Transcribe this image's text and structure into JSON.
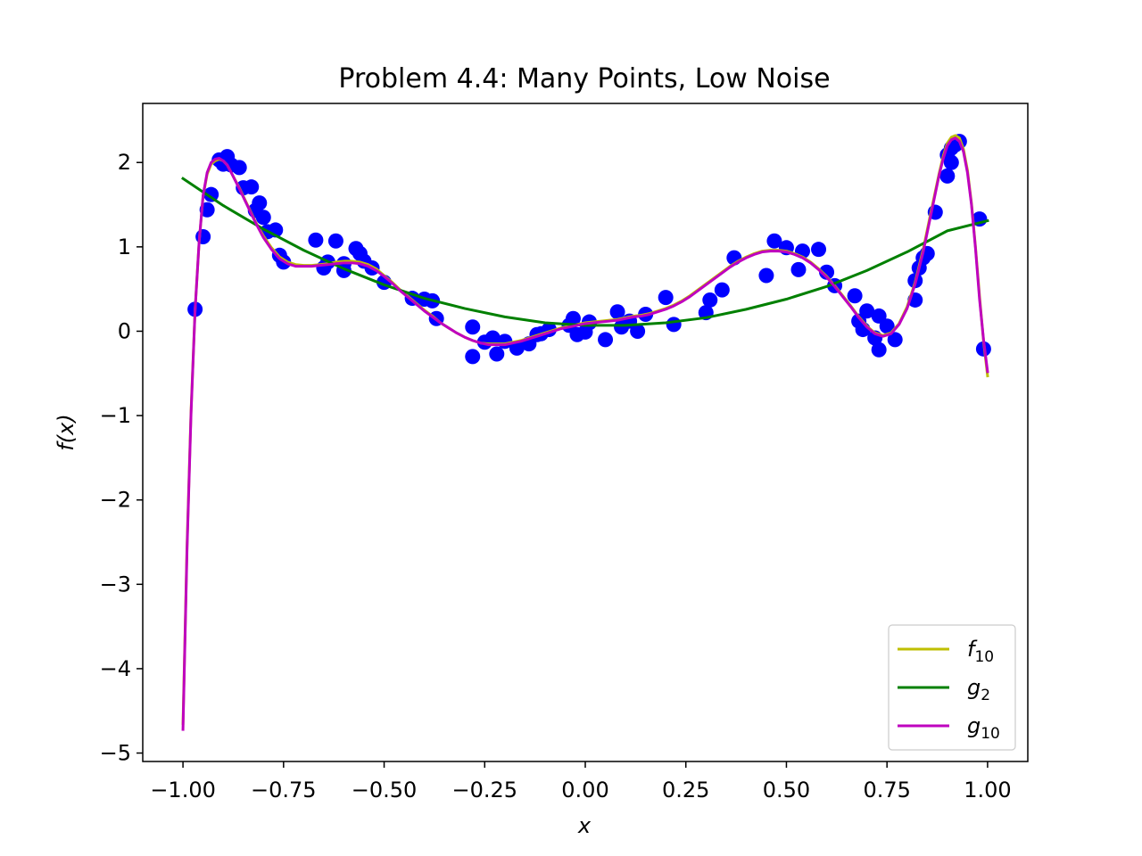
{
  "chart_data": {
    "type": "line",
    "title": "Problem 4.4: Many Points, Low Noise",
    "xlabel": "x",
    "ylabel": "f(x)",
    "xlim": [
      -1.1,
      1.1
    ],
    "ylim": [
      -5.1,
      2.7
    ],
    "grid": false,
    "legend_position": "bottom-right",
    "x_ticks": [
      -1.0,
      -0.75,
      -0.5,
      -0.25,
      0.0,
      0.25,
      0.5,
      0.75,
      1.0
    ],
    "x_tick_labels": [
      "−1.00",
      "−0.75",
      "−0.50",
      "−0.25",
      "0.00",
      "0.25",
      "0.50",
      "0.75",
      "1.00"
    ],
    "y_ticks": [
      -5,
      -4,
      -3,
      -2,
      -1,
      0,
      1,
      2
    ],
    "y_tick_labels": [
      "−5",
      "−4",
      "−3",
      "−2",
      "−1",
      "0",
      "1",
      "2"
    ],
    "legend": [
      {
        "base": "f",
        "sub": "10",
        "color": "#bfbf00"
      },
      {
        "base": "g",
        "sub": "2",
        "color": "#008000"
      },
      {
        "base": "g",
        "sub": "10",
        "color": "#bf00bf"
      }
    ],
    "colors": {
      "points": "#0000ff",
      "f10": "#bfbf00",
      "g2": "#008000",
      "g10": "#bf00bf"
    },
    "series": [
      {
        "name": "f10",
        "color": "#bfbf00",
        "x": [
          -1.0,
          -0.99,
          -0.98,
          -0.97,
          -0.96,
          -0.95,
          -0.94,
          -0.93,
          -0.92,
          -0.91,
          -0.9,
          -0.89,
          -0.88,
          -0.86,
          -0.84,
          -0.82,
          -0.8,
          -0.78,
          -0.76,
          -0.74,
          -0.72,
          -0.7,
          -0.68,
          -0.66,
          -0.64,
          -0.62,
          -0.6,
          -0.58,
          -0.56,
          -0.54,
          -0.52,
          -0.5,
          -0.48,
          -0.46,
          -0.44,
          -0.42,
          -0.4,
          -0.38,
          -0.36,
          -0.34,
          -0.32,
          -0.3,
          -0.28,
          -0.26,
          -0.24,
          -0.22,
          -0.2,
          -0.18,
          -0.16,
          -0.14,
          -0.12,
          -0.1,
          -0.08,
          -0.06,
          -0.04,
          -0.02,
          0.0,
          0.02,
          0.04,
          0.06,
          0.08,
          0.1,
          0.12,
          0.14,
          0.16,
          0.18,
          0.2,
          0.22,
          0.24,
          0.26,
          0.28,
          0.3,
          0.32,
          0.34,
          0.36,
          0.38,
          0.4,
          0.42,
          0.44,
          0.46,
          0.48,
          0.5,
          0.52,
          0.54,
          0.56,
          0.58,
          0.6,
          0.62,
          0.64,
          0.66,
          0.68,
          0.7,
          0.72,
          0.74,
          0.76,
          0.78,
          0.8,
          0.82,
          0.84,
          0.86,
          0.88,
          0.89,
          0.9,
          0.91,
          0.92,
          0.93,
          0.94,
          0.95,
          0.96,
          0.97,
          0.98,
          0.99,
          1.0
        ],
        "y": [
          -4.65,
          -2.55,
          -0.95,
          0.25,
          1.05,
          1.6,
          1.86,
          1.98,
          2.02,
          2.04,
          2.02,
          1.97,
          1.88,
          1.7,
          1.5,
          1.3,
          1.13,
          0.99,
          0.88,
          0.82,
          0.79,
          0.78,
          0.78,
          0.79,
          0.8,
          0.82,
          0.83,
          0.83,
          0.82,
          0.79,
          0.74,
          0.66,
          0.58,
          0.49,
          0.41,
          0.33,
          0.25,
          0.18,
          0.1,
          0.04,
          -0.02,
          -0.07,
          -0.11,
          -0.14,
          -0.15,
          -0.15,
          -0.15,
          -0.13,
          -0.11,
          -0.08,
          -0.05,
          -0.02,
          0.01,
          0.04,
          0.06,
          0.08,
          0.1,
          0.11,
          0.12,
          0.13,
          0.14,
          0.16,
          0.18,
          0.19,
          0.21,
          0.24,
          0.27,
          0.31,
          0.36,
          0.42,
          0.49,
          0.56,
          0.63,
          0.7,
          0.77,
          0.83,
          0.88,
          0.92,
          0.95,
          0.96,
          0.96,
          0.95,
          0.92,
          0.88,
          0.82,
          0.74,
          0.65,
          0.54,
          0.42,
          0.3,
          0.17,
          0.06,
          -0.02,
          -0.05,
          -0.02,
          0.09,
          0.29,
          0.58,
          0.97,
          1.43,
          1.88,
          2.08,
          2.23,
          2.3,
          2.32,
          2.29,
          2.16,
          1.91,
          1.52,
          1.0,
          0.42,
          -0.12,
          -0.53
        ]
      },
      {
        "name": "g2",
        "color": "#008000",
        "x": [
          -1.0,
          -0.9,
          -0.8,
          -0.7,
          -0.6,
          -0.5,
          -0.4,
          -0.3,
          -0.2,
          -0.1,
          0.0,
          0.1,
          0.2,
          0.3,
          0.4,
          0.5,
          0.6,
          0.7,
          0.8,
          0.9,
          1.0
        ],
        "y": [
          1.81,
          1.49,
          1.21,
          0.96,
          0.74,
          0.55,
          0.39,
          0.27,
          0.17,
          0.1,
          0.07,
          0.07,
          0.1,
          0.16,
          0.26,
          0.38,
          0.53,
          0.72,
          0.94,
          1.19,
          1.31
        ]
      },
      {
        "name": "g10",
        "color": "#bf00bf",
        "x": [
          -1.0,
          -0.99,
          -0.98,
          -0.97,
          -0.96,
          -0.95,
          -0.94,
          -0.93,
          -0.92,
          -0.91,
          -0.9,
          -0.89,
          -0.88,
          -0.86,
          -0.84,
          -0.82,
          -0.8,
          -0.78,
          -0.76,
          -0.74,
          -0.72,
          -0.7,
          -0.68,
          -0.66,
          -0.64,
          -0.62,
          -0.6,
          -0.58,
          -0.56,
          -0.54,
          -0.52,
          -0.5,
          -0.48,
          -0.46,
          -0.44,
          -0.42,
          -0.4,
          -0.38,
          -0.36,
          -0.34,
          -0.32,
          -0.3,
          -0.28,
          -0.26,
          -0.24,
          -0.22,
          -0.2,
          -0.18,
          -0.16,
          -0.14,
          -0.12,
          -0.1,
          -0.08,
          -0.06,
          -0.04,
          -0.02,
          0.0,
          0.02,
          0.04,
          0.06,
          0.08,
          0.1,
          0.12,
          0.14,
          0.16,
          0.18,
          0.2,
          0.22,
          0.24,
          0.26,
          0.28,
          0.3,
          0.32,
          0.34,
          0.36,
          0.38,
          0.4,
          0.42,
          0.44,
          0.46,
          0.48,
          0.5,
          0.52,
          0.54,
          0.56,
          0.58,
          0.6,
          0.62,
          0.64,
          0.66,
          0.68,
          0.7,
          0.72,
          0.74,
          0.76,
          0.78,
          0.8,
          0.82,
          0.84,
          0.86,
          0.88,
          0.89,
          0.9,
          0.91,
          0.92,
          0.93,
          0.94,
          0.95,
          0.96,
          0.97,
          0.98,
          0.99,
          1.0
        ],
        "y": [
          -4.72,
          -2.6,
          -0.98,
          0.24,
          1.05,
          1.61,
          1.88,
          2.0,
          2.04,
          2.05,
          2.02,
          1.97,
          1.88,
          1.69,
          1.49,
          1.29,
          1.11,
          0.97,
          0.86,
          0.8,
          0.77,
          0.77,
          0.77,
          0.78,
          0.79,
          0.8,
          0.81,
          0.81,
          0.8,
          0.77,
          0.72,
          0.65,
          0.57,
          0.48,
          0.4,
          0.32,
          0.24,
          0.17,
          0.1,
          0.04,
          -0.02,
          -0.07,
          -0.11,
          -0.14,
          -0.16,
          -0.16,
          -0.16,
          -0.14,
          -0.12,
          -0.09,
          -0.06,
          -0.03,
          0.0,
          0.03,
          0.05,
          0.07,
          0.09,
          0.1,
          0.11,
          0.12,
          0.13,
          0.15,
          0.17,
          0.18,
          0.2,
          0.23,
          0.26,
          0.3,
          0.35,
          0.41,
          0.48,
          0.55,
          0.62,
          0.69,
          0.76,
          0.82,
          0.87,
          0.91,
          0.94,
          0.95,
          0.95,
          0.94,
          0.91,
          0.87,
          0.81,
          0.73,
          0.64,
          0.53,
          0.41,
          0.29,
          0.16,
          0.05,
          -0.03,
          -0.06,
          -0.03,
          0.08,
          0.27,
          0.56,
          0.94,
          1.4,
          1.86,
          2.05,
          2.2,
          2.27,
          2.29,
          2.25,
          2.13,
          1.88,
          1.5,
          0.98,
          0.38,
          -0.1,
          -0.48
        ]
      }
    ],
    "points": {
      "name": "data",
      "color": "#0000ff",
      "x": [
        -0.97,
        -0.95,
        -0.94,
        -0.93,
        -0.91,
        -0.9,
        -0.89,
        -0.88,
        -0.86,
        -0.85,
        -0.83,
        -0.82,
        -0.81,
        -0.8,
        -0.79,
        -0.77,
        -0.76,
        -0.75,
        -0.67,
        -0.65,
        -0.64,
        -0.62,
        -0.6,
        -0.6,
        -0.57,
        -0.56,
        -0.55,
        -0.53,
        -0.5,
        -0.43,
        -0.4,
        -0.38,
        -0.37,
        -0.28,
        -0.28,
        -0.25,
        -0.23,
        -0.22,
        -0.2,
        -0.17,
        -0.14,
        -0.12,
        -0.11,
        -0.09,
        -0.04,
        -0.03,
        -0.02,
        0.0,
        0.01,
        0.01,
        0.05,
        0.08,
        0.09,
        0.11,
        0.13,
        0.15,
        0.2,
        0.22,
        0.3,
        0.31,
        0.34,
        0.37,
        0.45,
        0.47,
        0.5,
        0.53,
        0.54,
        0.58,
        0.6,
        0.62,
        0.67,
        0.68,
        0.69,
        0.7,
        0.72,
        0.73,
        0.73,
        0.75,
        0.77,
        0.82,
        0.82,
        0.83,
        0.84,
        0.85,
        0.87,
        0.9,
        0.9,
        0.91,
        0.91,
        0.92,
        0.93,
        0.98,
        0.99
      ],
      "y": [
        0.26,
        1.12,
        1.44,
        1.62,
        2.03,
        1.98,
        2.07,
        1.97,
        1.94,
        1.7,
        1.71,
        1.43,
        1.52,
        1.35,
        1.18,
        1.2,
        0.9,
        0.82,
        1.08,
        0.75,
        0.82,
        1.07,
        0.8,
        0.72,
        0.98,
        0.92,
        0.83,
        0.75,
        0.58,
        0.39,
        0.38,
        0.36,
        0.15,
        0.05,
        -0.3,
        -0.13,
        -0.08,
        -0.27,
        -0.12,
        -0.2,
        -0.15,
        -0.04,
        -0.03,
        0.02,
        0.07,
        0.15,
        -0.04,
        -0.01,
        0.1,
        0.11,
        -0.1,
        0.23,
        0.05,
        0.12,
        0.0,
        0.2,
        0.4,
        0.08,
        0.22,
        0.37,
        0.49,
        0.87,
        0.66,
        1.07,
        0.99,
        0.73,
        0.95,
        0.97,
        0.7,
        0.54,
        0.42,
        0.12,
        0.02,
        0.24,
        -0.08,
        0.18,
        -0.22,
        0.06,
        -0.1,
        0.37,
        0.6,
        0.75,
        0.87,
        0.92,
        1.41,
        1.84,
        2.09,
        2.17,
        2.0,
        2.21,
        2.25,
        1.33,
        -0.21
      ]
    }
  }
}
